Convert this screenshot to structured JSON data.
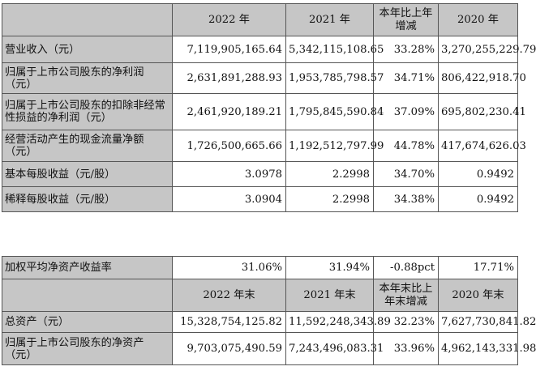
{
  "table1": {
    "headers": [
      "",
      "2022 年",
      "2021 年",
      "本年比上年\n增减",
      "2020 年"
    ],
    "rows": [
      {
        "label": "营业收入（元）",
        "v2022": "7,119,905,165.64",
        "v2021": "5,342,115,108.65",
        "change": "33.28%",
        "v2020": "3,270,255,229.79"
      },
      {
        "label": "归属于上市公司股东的净利润（元）",
        "v2022": "2,631,891,288.93",
        "v2021": "1,953,785,798.57",
        "change": "34.71%",
        "v2020": "806,422,918.70"
      },
      {
        "label": "归属于上市公司股东的扣除非经常性损益的净利润（元）",
        "v2022": "2,461,920,189.21",
        "v2021": "1,795,845,590.84",
        "change": "37.09%",
        "v2020": "695,802,230.41"
      },
      {
        "label": "经营活动产生的现金流量净额（元）",
        "v2022": "1,726,500,665.66",
        "v2021": "1,192,512,797.99",
        "change": "44.78%",
        "v2020": "417,674,626.03"
      },
      {
        "label": "基本每股收益（元/股）",
        "v2022": "3.0978",
        "v2021": "2.2998",
        "change": "34.70%",
        "v2020": "0.9492"
      },
      {
        "label": "稀释每股收益（元/股）",
        "v2022": "3.0904",
        "v2021": "2.2998",
        "change": "34.38%",
        "v2020": "0.9492"
      }
    ]
  },
  "table2": {
    "roe": {
      "label": "加权平均净资产收益率",
      "v2022": "31.06%",
      "v2021": "31.94%",
      "change": "-0.88pct",
      "v2020": "17.71%"
    },
    "headers": [
      "",
      "2022 年末",
      "2021 年末",
      "本年末比上\n年末增减",
      "2020 年末"
    ],
    "rows": [
      {
        "label": "总资产（元）",
        "v2022": "15,328,754,125.82",
        "v2021": "11,592,248,343.89",
        "change": "32.23%",
        "v2020": "7,627,730,841.82"
      },
      {
        "label": "归属于上市公司股东的净资产（元）",
        "v2022": "9,703,075,490.59",
        "v2021": "7,243,496,083.31",
        "change": "33.96%",
        "v2020": "4,962,143,331.98"
      }
    ]
  }
}
